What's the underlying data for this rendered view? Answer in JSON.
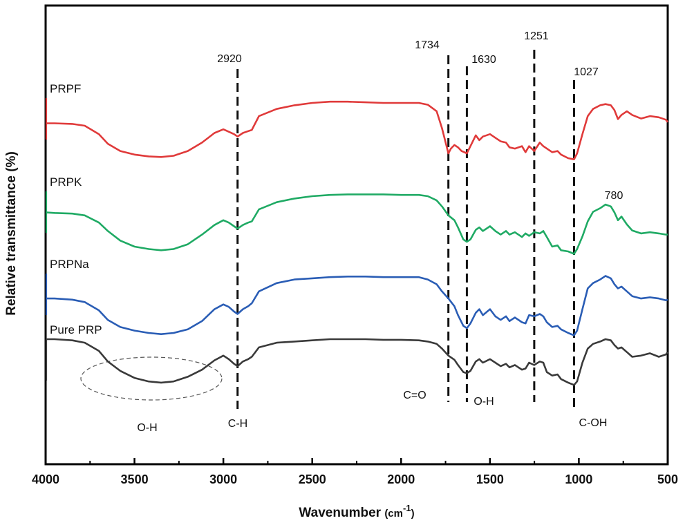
{
  "chart_data": {
    "type": "line",
    "xlabel": "Wavenumber",
    "xlabel_unit": "(cm",
    "xlabel_sup": "-1",
    "xlabel_close": ")",
    "ylabel": "Relative transmittance (%)",
    "xlim": [
      4000,
      500
    ],
    "x_ticks": [
      "4000",
      "3500",
      "3000",
      "2500",
      "2000",
      "1500",
      "1000",
      "500"
    ],
    "x_tick_values": [
      4000,
      3500,
      3000,
      2500,
      2000,
      1500,
      1000,
      500
    ],
    "grid": false,
    "legend": "inline labels",
    "series": [
      {
        "name": "PRPF",
        "color": "#e03a3a",
        "offset": 0,
        "points": [
          [
            4000,
            42
          ],
          [
            3950,
            42
          ],
          [
            3850,
            43
          ],
          [
            3780,
            46
          ],
          [
            3700,
            60
          ],
          [
            3650,
            76
          ],
          [
            3580,
            88
          ],
          [
            3500,
            94
          ],
          [
            3420,
            97
          ],
          [
            3350,
            98
          ],
          [
            3280,
            96
          ],
          [
            3200,
            88
          ],
          [
            3120,
            74
          ],
          [
            3050,
            58
          ],
          [
            3000,
            52
          ],
          [
            2970,
            56
          ],
          [
            2940,
            60
          ],
          [
            2920,
            64
          ],
          [
            2890,
            58
          ],
          [
            2860,
            55
          ],
          [
            2840,
            53
          ],
          [
            2800,
            30
          ],
          [
            2700,
            18
          ],
          [
            2600,
            12
          ],
          [
            2500,
            8
          ],
          [
            2400,
            6
          ],
          [
            2300,
            6
          ],
          [
            2200,
            7
          ],
          [
            2100,
            8
          ],
          [
            2000,
            8
          ],
          [
            1900,
            8
          ],
          [
            1850,
            11
          ],
          [
            1800,
            22
          ],
          [
            1770,
            50
          ],
          [
            1734,
            92
          ],
          [
            1720,
            84
          ],
          [
            1700,
            78
          ],
          [
            1680,
            82
          ],
          [
            1660,
            88
          ],
          [
            1630,
            92
          ],
          [
            1610,
            80
          ],
          [
            1580,
            62
          ],
          [
            1560,
            70
          ],
          [
            1540,
            64
          ],
          [
            1500,
            60
          ],
          [
            1470,
            66
          ],
          [
            1440,
            72
          ],
          [
            1410,
            74
          ],
          [
            1390,
            82
          ],
          [
            1360,
            84
          ],
          [
            1320,
            80
          ],
          [
            1300,
            90
          ],
          [
            1280,
            80
          ],
          [
            1251,
            88
          ],
          [
            1220,
            74
          ],
          [
            1200,
            80
          ],
          [
            1180,
            84
          ],
          [
            1150,
            90
          ],
          [
            1120,
            88
          ],
          [
            1100,
            94
          ],
          [
            1060,
            100
          ],
          [
            1027,
            102
          ],
          [
            1010,
            92
          ],
          [
            980,
            60
          ],
          [
            950,
            30
          ],
          [
            920,
            18
          ],
          [
            880,
            12
          ],
          [
            850,
            10
          ],
          [
            820,
            12
          ],
          [
            800,
            20
          ],
          [
            780,
            35
          ],
          [
            760,
            28
          ],
          [
            730,
            22
          ],
          [
            700,
            28
          ],
          [
            650,
            34
          ],
          [
            600,
            30
          ],
          [
            550,
            32
          ],
          [
            510,
            36
          ],
          [
            500,
            40
          ]
        ]
      },
      {
        "name": "PRPK",
        "color": "#1faa64",
        "offset": 0,
        "points": [
          [
            4000,
            35
          ],
          [
            3950,
            36
          ],
          [
            3850,
            37
          ],
          [
            3780,
            40
          ],
          [
            3700,
            52
          ],
          [
            3650,
            66
          ],
          [
            3580,
            82
          ],
          [
            3500,
            92
          ],
          [
            3420,
            96
          ],
          [
            3350,
            98
          ],
          [
            3280,
            96
          ],
          [
            3200,
            88
          ],
          [
            3120,
            72
          ],
          [
            3050,
            56
          ],
          [
            3000,
            48
          ],
          [
            2970,
            52
          ],
          [
            2940,
            58
          ],
          [
            2920,
            62
          ],
          [
            2890,
            56
          ],
          [
            2860,
            52
          ],
          [
            2840,
            50
          ],
          [
            2800,
            30
          ],
          [
            2700,
            18
          ],
          [
            2600,
            12
          ],
          [
            2500,
            8
          ],
          [
            2400,
            6
          ],
          [
            2300,
            5
          ],
          [
            2200,
            5
          ],
          [
            2100,
            5
          ],
          [
            2000,
            6
          ],
          [
            1900,
            6
          ],
          [
            1850,
            8
          ],
          [
            1800,
            15
          ],
          [
            1770,
            25
          ],
          [
            1734,
            40
          ],
          [
            1700,
            48
          ],
          [
            1680,
            60
          ],
          [
            1650,
            80
          ],
          [
            1630,
            84
          ],
          [
            1610,
            80
          ],
          [
            1580,
            64
          ],
          [
            1560,
            60
          ],
          [
            1540,
            66
          ],
          [
            1500,
            58
          ],
          [
            1470,
            66
          ],
          [
            1440,
            72
          ],
          [
            1410,
            66
          ],
          [
            1390,
            72
          ],
          [
            1360,
            68
          ],
          [
            1320,
            76
          ],
          [
            1300,
            70
          ],
          [
            1280,
            74
          ],
          [
            1251,
            68
          ],
          [
            1220,
            70
          ],
          [
            1200,
            66
          ],
          [
            1180,
            76
          ],
          [
            1150,
            92
          ],
          [
            1120,
            90
          ],
          [
            1100,
            98
          ],
          [
            1060,
            100
          ],
          [
            1027,
            104
          ],
          [
            1010,
            96
          ],
          [
            980,
            75
          ],
          [
            950,
            50
          ],
          [
            920,
            34
          ],
          [
            880,
            28
          ],
          [
            850,
            22
          ],
          [
            820,
            25
          ],
          [
            800,
            35
          ],
          [
            780,
            48
          ],
          [
            760,
            42
          ],
          [
            730,
            55
          ],
          [
            700,
            65
          ],
          [
            650,
            70
          ],
          [
            600,
            68
          ],
          [
            550,
            70
          ],
          [
            510,
            72
          ],
          [
            500,
            72
          ]
        ]
      },
      {
        "name": "PRPNa",
        "color": "#2a5db5",
        "offset": 0,
        "points": [
          [
            4000,
            42
          ],
          [
            3950,
            42
          ],
          [
            3850,
            44
          ],
          [
            3780,
            48
          ],
          [
            3700,
            62
          ],
          [
            3650,
            78
          ],
          [
            3580,
            90
          ],
          [
            3500,
            96
          ],
          [
            3420,
            100
          ],
          [
            3350,
            102
          ],
          [
            3280,
            100
          ],
          [
            3200,
            94
          ],
          [
            3120,
            80
          ],
          [
            3050,
            60
          ],
          [
            3000,
            52
          ],
          [
            2970,
            56
          ],
          [
            2940,
            64
          ],
          [
            2920,
            68
          ],
          [
            2890,
            60
          ],
          [
            2860,
            55
          ],
          [
            2840,
            50
          ],
          [
            2800,
            30
          ],
          [
            2700,
            16
          ],
          [
            2600,
            10
          ],
          [
            2500,
            8
          ],
          [
            2400,
            6
          ],
          [
            2300,
            5
          ],
          [
            2200,
            5
          ],
          [
            2100,
            6
          ],
          [
            2000,
            6
          ],
          [
            1900,
            6
          ],
          [
            1850,
            10
          ],
          [
            1800,
            18
          ],
          [
            1770,
            30
          ],
          [
            1734,
            42
          ],
          [
            1700,
            55
          ],
          [
            1680,
            70
          ],
          [
            1650,
            88
          ],
          [
            1630,
            92
          ],
          [
            1610,
            84
          ],
          [
            1580,
            66
          ],
          [
            1560,
            60
          ],
          [
            1540,
            70
          ],
          [
            1500,
            60
          ],
          [
            1470,
            72
          ],
          [
            1440,
            78
          ],
          [
            1410,
            72
          ],
          [
            1390,
            80
          ],
          [
            1360,
            74
          ],
          [
            1320,
            82
          ],
          [
            1300,
            84
          ],
          [
            1280,
            70
          ],
          [
            1251,
            72
          ],
          [
            1220,
            68
          ],
          [
            1200,
            72
          ],
          [
            1180,
            82
          ],
          [
            1150,
            90
          ],
          [
            1120,
            88
          ],
          [
            1100,
            94
          ],
          [
            1060,
            100
          ],
          [
            1027,
            104
          ],
          [
            1010,
            96
          ],
          [
            980,
            60
          ],
          [
            950,
            25
          ],
          [
            920,
            16
          ],
          [
            880,
            10
          ],
          [
            850,
            4
          ],
          [
            820,
            8
          ],
          [
            800,
            18
          ],
          [
            780,
            25
          ],
          [
            760,
            22
          ],
          [
            730,
            30
          ],
          [
            700,
            38
          ],
          [
            650,
            42
          ],
          [
            600,
            40
          ],
          [
            550,
            42
          ],
          [
            510,
            45
          ],
          [
            500,
            44
          ]
        ]
      },
      {
        "name": "Pure PRP",
        "color": "#3a3a3a",
        "offset": 0,
        "points": [
          [
            4000,
            0
          ],
          [
            3950,
            0
          ],
          [
            3850,
            2
          ],
          [
            3780,
            6
          ],
          [
            3700,
            20
          ],
          [
            3650,
            38
          ],
          [
            3580,
            54
          ],
          [
            3500,
            66
          ],
          [
            3420,
            72
          ],
          [
            3350,
            74
          ],
          [
            3280,
            72
          ],
          [
            3200,
            64
          ],
          [
            3120,
            52
          ],
          [
            3050,
            36
          ],
          [
            3000,
            28
          ],
          [
            2970,
            34
          ],
          [
            2940,
            42
          ],
          [
            2920,
            46
          ],
          [
            2890,
            38
          ],
          [
            2860,
            34
          ],
          [
            2840,
            30
          ],
          [
            2800,
            14
          ],
          [
            2700,
            6
          ],
          [
            2600,
            4
          ],
          [
            2500,
            2
          ],
          [
            2400,
            0
          ],
          [
            2300,
            0
          ],
          [
            2200,
            0
          ],
          [
            2100,
            1
          ],
          [
            2000,
            1
          ],
          [
            1900,
            2
          ],
          [
            1850,
            4
          ],
          [
            1800,
            8
          ],
          [
            1770,
            16
          ],
          [
            1734,
            28
          ],
          [
            1700,
            35
          ],
          [
            1680,
            44
          ],
          [
            1650,
            56
          ],
          [
            1630,
            58
          ],
          [
            1610,
            54
          ],
          [
            1580,
            38
          ],
          [
            1560,
            34
          ],
          [
            1540,
            40
          ],
          [
            1500,
            34
          ],
          [
            1470,
            40
          ],
          [
            1440,
            46
          ],
          [
            1410,
            42
          ],
          [
            1390,
            48
          ],
          [
            1360,
            44
          ],
          [
            1320,
            52
          ],
          [
            1300,
            50
          ],
          [
            1280,
            40
          ],
          [
            1251,
            44
          ],
          [
            1220,
            38
          ],
          [
            1200,
            40
          ],
          [
            1180,
            56
          ],
          [
            1150,
            62
          ],
          [
            1120,
            60
          ],
          [
            1100,
            68
          ],
          [
            1060,
            74
          ],
          [
            1027,
            78
          ],
          [
            1010,
            72
          ],
          [
            980,
            40
          ],
          [
            950,
            16
          ],
          [
            920,
            8
          ],
          [
            880,
            4
          ],
          [
            850,
            0
          ],
          [
            820,
            2
          ],
          [
            800,
            10
          ],
          [
            780,
            16
          ],
          [
            760,
            14
          ],
          [
            730,
            22
          ],
          [
            700,
            30
          ],
          [
            650,
            28
          ],
          [
            600,
            24
          ],
          [
            550,
            30
          ],
          [
            510,
            26
          ],
          [
            500,
            22
          ]
        ]
      }
    ],
    "peak_labels": [
      {
        "text": "2920",
        "x": 2920
      },
      {
        "text": "1734",
        "x": 1734
      },
      {
        "text": "1630",
        "x": 1630
      },
      {
        "text": "1251",
        "x": 1251
      },
      {
        "text": "1027",
        "x": 1027
      },
      {
        "text": "780",
        "x": 780
      }
    ],
    "group_labels": [
      {
        "text": "O-H",
        "x": 3450
      },
      {
        "text": "C-H",
        "x": 2920
      },
      {
        "text": "C=O",
        "x": 1800
      },
      {
        "text": "O-H",
        "x": 1560
      },
      {
        "text": "C-OH",
        "x": 1000
      }
    ]
  }
}
